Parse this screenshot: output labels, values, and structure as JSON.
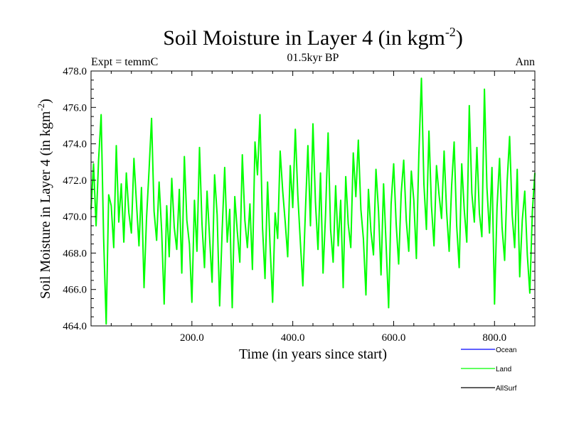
{
  "chart_data": {
    "type": "line",
    "title": "Soil Moisture in Layer 4 (in kgm",
    "title_sup": "-2",
    "title_end": ")",
    "subtitle": "01.5kyr BP",
    "left_label": "Expt = temmC",
    "right_label": "Ann",
    "xlabel": "Time (in years since start)",
    "ylabel": "Soil Moisture in Layer 4 (in kgm",
    "ylabel_sup": "-2",
    "ylabel_end": ")",
    "xlim": [
      0,
      880
    ],
    "ylim": [
      464,
      478
    ],
    "xticks": [
      200,
      400,
      600,
      800
    ],
    "xtick_labels": [
      "200.0",
      "400.0",
      "600.0",
      "800.0"
    ],
    "yticks": [
      464,
      466,
      468,
      470,
      472,
      474,
      476,
      478
    ],
    "ytick_labels": [
      "464.0",
      "466.0",
      "468.0",
      "470.0",
      "472.0",
      "474.0",
      "476.0",
      "478.0"
    ],
    "legend": [
      {
        "name": "Ocean",
        "color": "#0000ff"
      },
      {
        "name": "Land",
        "color": "#00ff00"
      },
      {
        "name": "AllSurf",
        "color": "#000000"
      }
    ],
    "series": [
      {
        "name": "Land",
        "color": "#00ff00",
        "x": [
          0,
          5,
          10,
          15,
          20,
          25,
          30,
          35,
          40,
          45,
          50,
          55,
          60,
          65,
          70,
          75,
          80,
          85,
          90,
          95,
          100,
          105,
          110,
          115,
          120,
          125,
          130,
          135,
          140,
          145,
          150,
          155,
          160,
          165,
          170,
          175,
          180,
          185,
          190,
          195,
          200,
          205,
          210,
          215,
          220,
          225,
          230,
          235,
          240,
          245,
          250,
          255,
          260,
          265,
          270,
          275,
          280,
          285,
          290,
          295,
          300,
          305,
          310,
          315,
          320,
          325,
          330,
          335,
          340,
          345,
          350,
          355,
          360,
          365,
          370,
          375,
          380,
          385,
          390,
          395,
          400,
          405,
          410,
          415,
          420,
          425,
          430,
          435,
          440,
          445,
          450,
          455,
          460,
          465,
          470,
          475,
          480,
          485,
          490,
          495,
          500,
          505,
          510,
          515,
          520,
          525,
          530,
          535,
          540,
          545,
          550,
          555,
          560,
          565,
          570,
          575,
          580,
          585,
          590,
          595,
          600,
          605,
          610,
          615,
          620,
          625,
          630,
          635,
          640,
          645,
          650,
          655,
          660,
          665,
          670,
          675,
          680,
          685,
          690,
          695,
          700,
          705,
          710,
          715,
          720,
          725,
          730,
          735,
          740,
          745,
          750,
          755,
          760,
          765,
          770,
          775,
          780,
          785,
          790,
          795,
          800,
          805,
          810,
          815,
          820,
          825,
          830,
          835,
          840,
          845,
          850,
          855,
          860,
          865,
          870,
          875,
          880
        ],
        "values": [
          470.4,
          472.9,
          469.5,
          473.1,
          475.6,
          468.8,
          464.1,
          471.2,
          470.6,
          468.3,
          473.9,
          469.7,
          471.8,
          468.6,
          472.4,
          470.2,
          469.1,
          473.2,
          470.8,
          468.4,
          471.6,
          466.1,
          469.9,
          472.5,
          475.4,
          470.3,
          468.7,
          471.9,
          469.2,
          465.2,
          470.6,
          467.8,
          472.1,
          469.4,
          468.2,
          471.5,
          466.9,
          473.3,
          469.8,
          468.5,
          465.3,
          470.9,
          468.1,
          473.8,
          469.6,
          467.2,
          471.4,
          468.9,
          466.4,
          472.3,
          470.1,
          465.1,
          469.3,
          472.7,
          468.6,
          470.4,
          465.0,
          471.1,
          469.2,
          467.5,
          473.4,
          469.8,
          468.3,
          470.7,
          467.1,
          474.1,
          472.3,
          475.6,
          469.4,
          466.6,
          471.9,
          468.4,
          465.3,
          470.2,
          468.8,
          473.6,
          471.4,
          469.7,
          467.8,
          472.8,
          470.5,
          474.8,
          471.2,
          468.6,
          466.2,
          470.3,
          473.9,
          469.5,
          475.1,
          470.8,
          468.2,
          472.4,
          466.9,
          470.1,
          474.6,
          469.3,
          467.5,
          471.7,
          468.4,
          470.9,
          466.1,
          472.2,
          469.6,
          468.3,
          473.5,
          471.1,
          474.2,
          470.4,
          468.8,
          465.7,
          471.5,
          469.2,
          467.9,
          472.6,
          470.3,
          466.8,
          471.8,
          468.5,
          465.0,
          470.7,
          472.9,
          469.6,
          467.4,
          471.3,
          473.1,
          469.8,
          468.1,
          472.5,
          470.9,
          467.7,
          473.4,
          477.6,
          471.8,
          469.3,
          474.7,
          470.6,
          468.4,
          472.8,
          471.2,
          469.9,
          473.6,
          470.3,
          468.1,
          471.7,
          474.1,
          469.5,
          467.2,
          472.9,
          470.4,
          468.6,
          476.1,
          471.3,
          469.7,
          473.8,
          470.2,
          468.9,
          477.0,
          471.6,
          469.1,
          472.7,
          465.2,
          470.5,
          473.2,
          469.4,
          467.6,
          471.9,
          474.4,
          470.1,
          468.3,
          472.6,
          466.7,
          469.8,
          471.4,
          467.9,
          465.8,
          470.3,
          472.4
        ]
      }
    ]
  }
}
